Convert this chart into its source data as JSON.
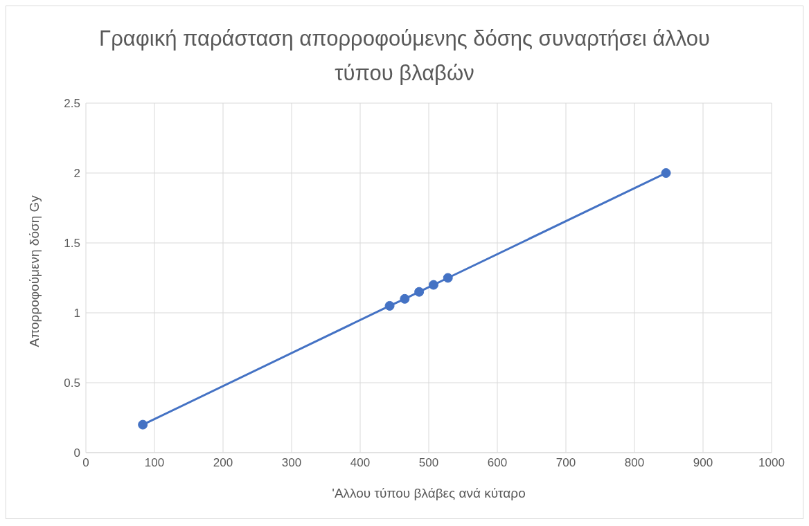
{
  "chart_data": {
    "type": "line",
    "title": "Γραφική παράσταση απορροφούμενης δόσης συναρτήσει άλλου τύπου βλαβών",
    "xlabel": "'Αλλου τύπου βλάβες ανά κύταρο",
    "ylabel": "Απορροφούμενη δόση Gy",
    "x": [
      83,
      443,
      465,
      486,
      507,
      528,
      846
    ],
    "series": [
      {
        "color": "#4472c4",
        "values": [
          0.2,
          1.05,
          1.1,
          1.15,
          1.2,
          1.25,
          2.0
        ]
      }
    ],
    "xlim": [
      0,
      1000
    ],
    "xticks": [
      0,
      100,
      200,
      300,
      400,
      500,
      600,
      700,
      800,
      900,
      1000
    ],
    "ylim": [
      0,
      2.5
    ],
    "yticks": [
      0,
      0.5,
      1,
      1.5,
      2,
      2.5
    ],
    "grid": true,
    "marker": "circle",
    "line_style": "solid",
    "legend": false
  }
}
